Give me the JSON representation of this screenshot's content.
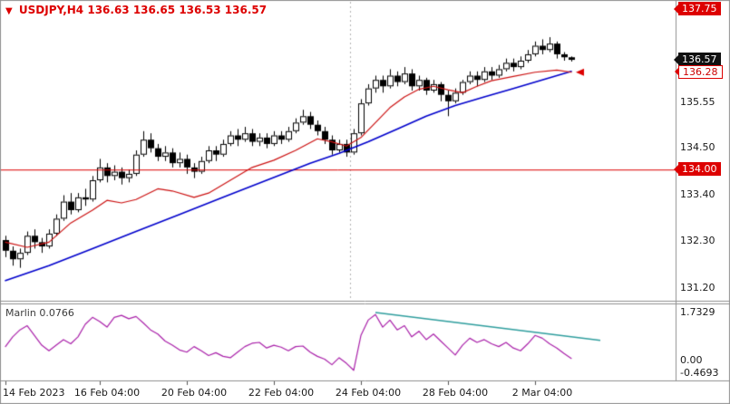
{
  "header": {
    "symbol": "USDJPY,H4",
    "quote": "136.63 136.65 136.53 136.57"
  },
  "icons": {
    "symbol_dropdown": "▼"
  },
  "indicator": {
    "name": "Marlin",
    "value": "0.0766",
    "scale_labels": [
      "1.7329",
      "0.00",
      "-0.4693"
    ],
    "scale_values": [
      1.7329,
      0,
      -0.4693
    ]
  },
  "price_axis": {
    "badges": [
      {
        "label": "137.75",
        "price": 137.75,
        "style": "red"
      },
      {
        "label": "136.57",
        "price": 136.57,
        "style": "black"
      },
      {
        "label": "136.28",
        "price": 136.28,
        "style": "outline"
      },
      {
        "label": "134.00",
        "price": 134.0,
        "style": "red"
      }
    ],
    "labels": [
      {
        "label": "135.55",
        "price": 135.55
      },
      {
        "label": "134.50",
        "price": 134.5
      },
      {
        "label": "133.40",
        "price": 133.4
      },
      {
        "label": "132.30",
        "price": 132.3
      },
      {
        "label": "131.20",
        "price": 131.2
      }
    ]
  },
  "time_axis": {
    "ticks": [
      {
        "index": 0,
        "label": "14 Feb 2023"
      },
      {
        "index": 13,
        "label": "16 Feb 04:00"
      },
      {
        "index": 25,
        "label": "20 Feb 04:00"
      },
      {
        "index": 37,
        "label": "22 Feb 04:00"
      },
      {
        "index": 49,
        "label": "24 Feb 04:00"
      },
      {
        "index": 61,
        "label": "28 Feb 04:00"
      },
      {
        "index": 73,
        "label": "2 Mar 04:00"
      }
    ]
  },
  "colors": {
    "bull": "#ffffff",
    "bear": "#000000",
    "candle_border": "#000000",
    "ma_blue": "#0000cc",
    "ma_red": "#cc1111",
    "level_red": "#dd0000",
    "marlin": "#aa22aa",
    "trend_teal": "#2f9e9e",
    "panel_border": "#909090",
    "separator": "#b4b4b4"
  },
  "chart_data": [
    {
      "type": "candlestick",
      "title": "USDJPY,H4",
      "timeframe": "H4",
      "ylim": [
        130.95,
        137.95
      ],
      "y_tick_labels": [
        "137.75",
        "136.57",
        "136.28",
        "135.55",
        "134.50",
        "134.00",
        "133.40",
        "132.30",
        "131.20"
      ],
      "red_hline": 134.0,
      "marker": {
        "price": 136.28
      },
      "separator_x_index": 47.5,
      "candles": [
        [
          132.35,
          132.45,
          131.95,
          132.1
        ],
        [
          132.1,
          132.2,
          131.75,
          131.9
        ],
        [
          131.9,
          132.15,
          131.7,
          132.05
        ],
        [
          132.05,
          132.55,
          132.0,
          132.45
        ],
        [
          132.45,
          132.6,
          132.15,
          132.3
        ],
        [
          132.3,
          132.4,
          132.05,
          132.2
        ],
        [
          132.2,
          132.6,
          132.15,
          132.5
        ],
        [
          132.5,
          132.95,
          132.45,
          132.85
        ],
        [
          132.85,
          133.4,
          132.8,
          133.25
        ],
        [
          133.25,
          133.45,
          132.95,
          133.05
        ],
        [
          133.05,
          133.45,
          133.0,
          133.35
        ],
        [
          133.35,
          133.55,
          133.15,
          133.3
        ],
        [
          133.3,
          133.85,
          133.25,
          133.75
        ],
        [
          133.75,
          134.25,
          133.7,
          134.05
        ],
        [
          134.05,
          134.15,
          133.7,
          133.85
        ],
        [
          133.85,
          134.1,
          133.75,
          133.95
        ],
        [
          133.95,
          134.05,
          133.65,
          133.8
        ],
        [
          133.8,
          134.0,
          133.7,
          133.9
        ],
        [
          133.9,
          134.45,
          133.85,
          134.35
        ],
        [
          134.35,
          134.9,
          134.3,
          134.7
        ],
        [
          134.7,
          134.85,
          134.4,
          134.5
        ],
        [
          134.5,
          134.6,
          134.2,
          134.3
        ],
        [
          134.3,
          134.55,
          134.2,
          134.4
        ],
        [
          134.4,
          134.5,
          134.05,
          134.15
        ],
        [
          134.15,
          134.4,
          134.05,
          134.25
        ],
        [
          134.25,
          134.35,
          133.9,
          134.05
        ],
        [
          134.05,
          134.15,
          133.8,
          133.95
        ],
        [
          133.95,
          134.3,
          133.9,
          134.2
        ],
        [
          134.2,
          134.55,
          134.15,
          134.45
        ],
        [
          134.45,
          134.55,
          134.2,
          134.35
        ],
        [
          134.35,
          134.7,
          134.3,
          134.6
        ],
        [
          134.6,
          134.9,
          134.55,
          134.8
        ],
        [
          134.8,
          134.95,
          134.55,
          134.7
        ],
        [
          134.7,
          135.0,
          134.65,
          134.85
        ],
        [
          134.85,
          134.95,
          134.55,
          134.65
        ],
        [
          134.65,
          134.85,
          134.55,
          134.75
        ],
        [
          134.75,
          134.85,
          134.5,
          134.6
        ],
        [
          134.6,
          134.9,
          134.55,
          134.8
        ],
        [
          134.8,
          134.9,
          134.6,
          134.7
        ],
        [
          134.7,
          135.0,
          134.65,
          134.9
        ],
        [
          134.9,
          135.2,
          134.85,
          135.1
        ],
        [
          135.1,
          135.4,
          135.05,
          135.25
        ],
        [
          135.25,
          135.35,
          134.95,
          135.05
        ],
        [
          135.05,
          135.15,
          134.8,
          134.9
        ],
        [
          134.9,
          135.0,
          134.6,
          134.7
        ],
        [
          134.7,
          134.8,
          134.35,
          134.45
        ],
        [
          134.45,
          134.7,
          134.4,
          134.6
        ],
        [
          134.6,
          134.7,
          134.3,
          134.4
        ],
        [
          134.4,
          134.95,
          134.35,
          134.85
        ],
        [
          134.85,
          135.65,
          134.8,
          135.55
        ],
        [
          135.55,
          136.0,
          135.5,
          135.9
        ],
        [
          135.9,
          136.2,
          135.8,
          136.1
        ],
        [
          136.1,
          136.2,
          135.8,
          135.95
        ],
        [
          135.95,
          136.35,
          135.9,
          136.2
        ],
        [
          136.2,
          136.3,
          135.95,
          136.05
        ],
        [
          136.05,
          136.4,
          136.0,
          136.25
        ],
        [
          136.25,
          136.35,
          135.85,
          135.95
        ],
        [
          135.95,
          136.2,
          135.85,
          136.1
        ],
        [
          136.1,
          136.15,
          135.75,
          135.85
        ],
        [
          135.85,
          136.1,
          135.8,
          136.0
        ],
        [
          136.0,
          136.05,
          135.6,
          135.75
        ],
        [
          135.75,
          135.85,
          135.25,
          135.6
        ],
        [
          135.6,
          135.9,
          135.55,
          135.8
        ],
        [
          135.8,
          136.1,
          135.75,
          136.05
        ],
        [
          136.05,
          136.3,
          136.0,
          136.2
        ],
        [
          136.2,
          136.3,
          135.95,
          136.1
        ],
        [
          136.1,
          136.4,
          136.05,
          136.3
        ],
        [
          136.3,
          136.4,
          136.1,
          136.2
        ],
        [
          136.2,
          136.45,
          136.15,
          136.35
        ],
        [
          136.35,
          136.6,
          136.3,
          136.5
        ],
        [
          136.5,
          136.6,
          136.3,
          136.4
        ],
        [
          136.4,
          136.65,
          136.35,
          136.55
        ],
        [
          136.55,
          136.8,
          136.5,
          136.7
        ],
        [
          136.7,
          137.0,
          136.65,
          136.9
        ],
        [
          136.9,
          137.05,
          136.7,
          136.8
        ],
        [
          136.8,
          137.1,
          136.75,
          136.95
        ],
        [
          136.95,
          137.0,
          136.6,
          136.7
        ],
        [
          136.7,
          136.75,
          136.55,
          136.63
        ],
        [
          136.63,
          136.65,
          136.53,
          136.57
        ]
      ],
      "ma_blue": {
        "color": "#0000cc",
        "width": 1.6,
        "points": [
          [
            0,
            131.4
          ],
          [
            6,
            131.75
          ],
          [
            12,
            132.15
          ],
          [
            18,
            132.55
          ],
          [
            24,
            132.95
          ],
          [
            30,
            133.35
          ],
          [
            36,
            133.75
          ],
          [
            42,
            134.15
          ],
          [
            46,
            134.38
          ],
          [
            50,
            134.65
          ],
          [
            54,
            134.95
          ],
          [
            58,
            135.25
          ],
          [
            62,
            135.5
          ],
          [
            66,
            135.7
          ],
          [
            70,
            135.9
          ],
          [
            74,
            136.1
          ],
          [
            78,
            136.3
          ]
        ]
      },
      "ma_red": {
        "color": "#cc1111",
        "width": 1.2,
        "points": [
          [
            0,
            132.3
          ],
          [
            3,
            132.18
          ],
          [
            6,
            132.3
          ],
          [
            9,
            132.75
          ],
          [
            12,
            133.05
          ],
          [
            14,
            133.28
          ],
          [
            16,
            133.22
          ],
          [
            18,
            133.3
          ],
          [
            21,
            133.55
          ],
          [
            23,
            133.5
          ],
          [
            26,
            133.35
          ],
          [
            28,
            133.45
          ],
          [
            31,
            133.75
          ],
          [
            34,
            134.05
          ],
          [
            37,
            134.22
          ],
          [
            40,
            134.45
          ],
          [
            43,
            134.72
          ],
          [
            45,
            134.65
          ],
          [
            47,
            134.55
          ],
          [
            49,
            134.75
          ],
          [
            51,
            135.1
          ],
          [
            53,
            135.45
          ],
          [
            55,
            135.7
          ],
          [
            57,
            135.88
          ],
          [
            59,
            135.95
          ],
          [
            61,
            135.87
          ],
          [
            63,
            135.8
          ],
          [
            65,
            135.95
          ],
          [
            67,
            136.08
          ],
          [
            70,
            136.18
          ],
          [
            73,
            136.28
          ],
          [
            76,
            136.33
          ],
          [
            78,
            136.28
          ]
        ]
      }
    },
    {
      "type": "line",
      "name": "Marlin",
      "current_value": "0.0766",
      "color": "#aa22aa",
      "ylim": [
        -0.65,
        1.95
      ],
      "scale_labels": [
        "1.7329",
        "0.00",
        "-0.4693"
      ],
      "values": [
        0.5,
        0.85,
        1.1,
        1.25,
        0.9,
        0.55,
        0.35,
        0.55,
        0.75,
        0.6,
        0.85,
        1.3,
        1.55,
        1.4,
        1.2,
        1.55,
        1.62,
        1.5,
        1.58,
        1.35,
        1.1,
        0.95,
        0.7,
        0.55,
        0.38,
        0.3,
        0.5,
        0.35,
        0.18,
        0.28,
        0.15,
        0.1,
        0.3,
        0.5,
        0.62,
        0.65,
        0.45,
        0.55,
        0.48,
        0.35,
        0.5,
        0.52,
        0.3,
        0.15,
        0.05,
        -0.15,
        0.1,
        -0.1,
        -0.35,
        0.9,
        1.45,
        1.65,
        1.2,
        1.45,
        1.1,
        1.25,
        0.85,
        1.05,
        0.75,
        0.95,
        0.7,
        0.45,
        0.2,
        0.55,
        0.8,
        0.65,
        0.75,
        0.6,
        0.5,
        0.65,
        0.45,
        0.35,
        0.6,
        0.9,
        0.8,
        0.6,
        0.45,
        0.25,
        0.0766
      ],
      "trendline": {
        "x1": 51,
        "v1": 1.72,
        "x2": 82,
        "v2": 0.72,
        "color": "#2f9e9e"
      }
    }
  ]
}
